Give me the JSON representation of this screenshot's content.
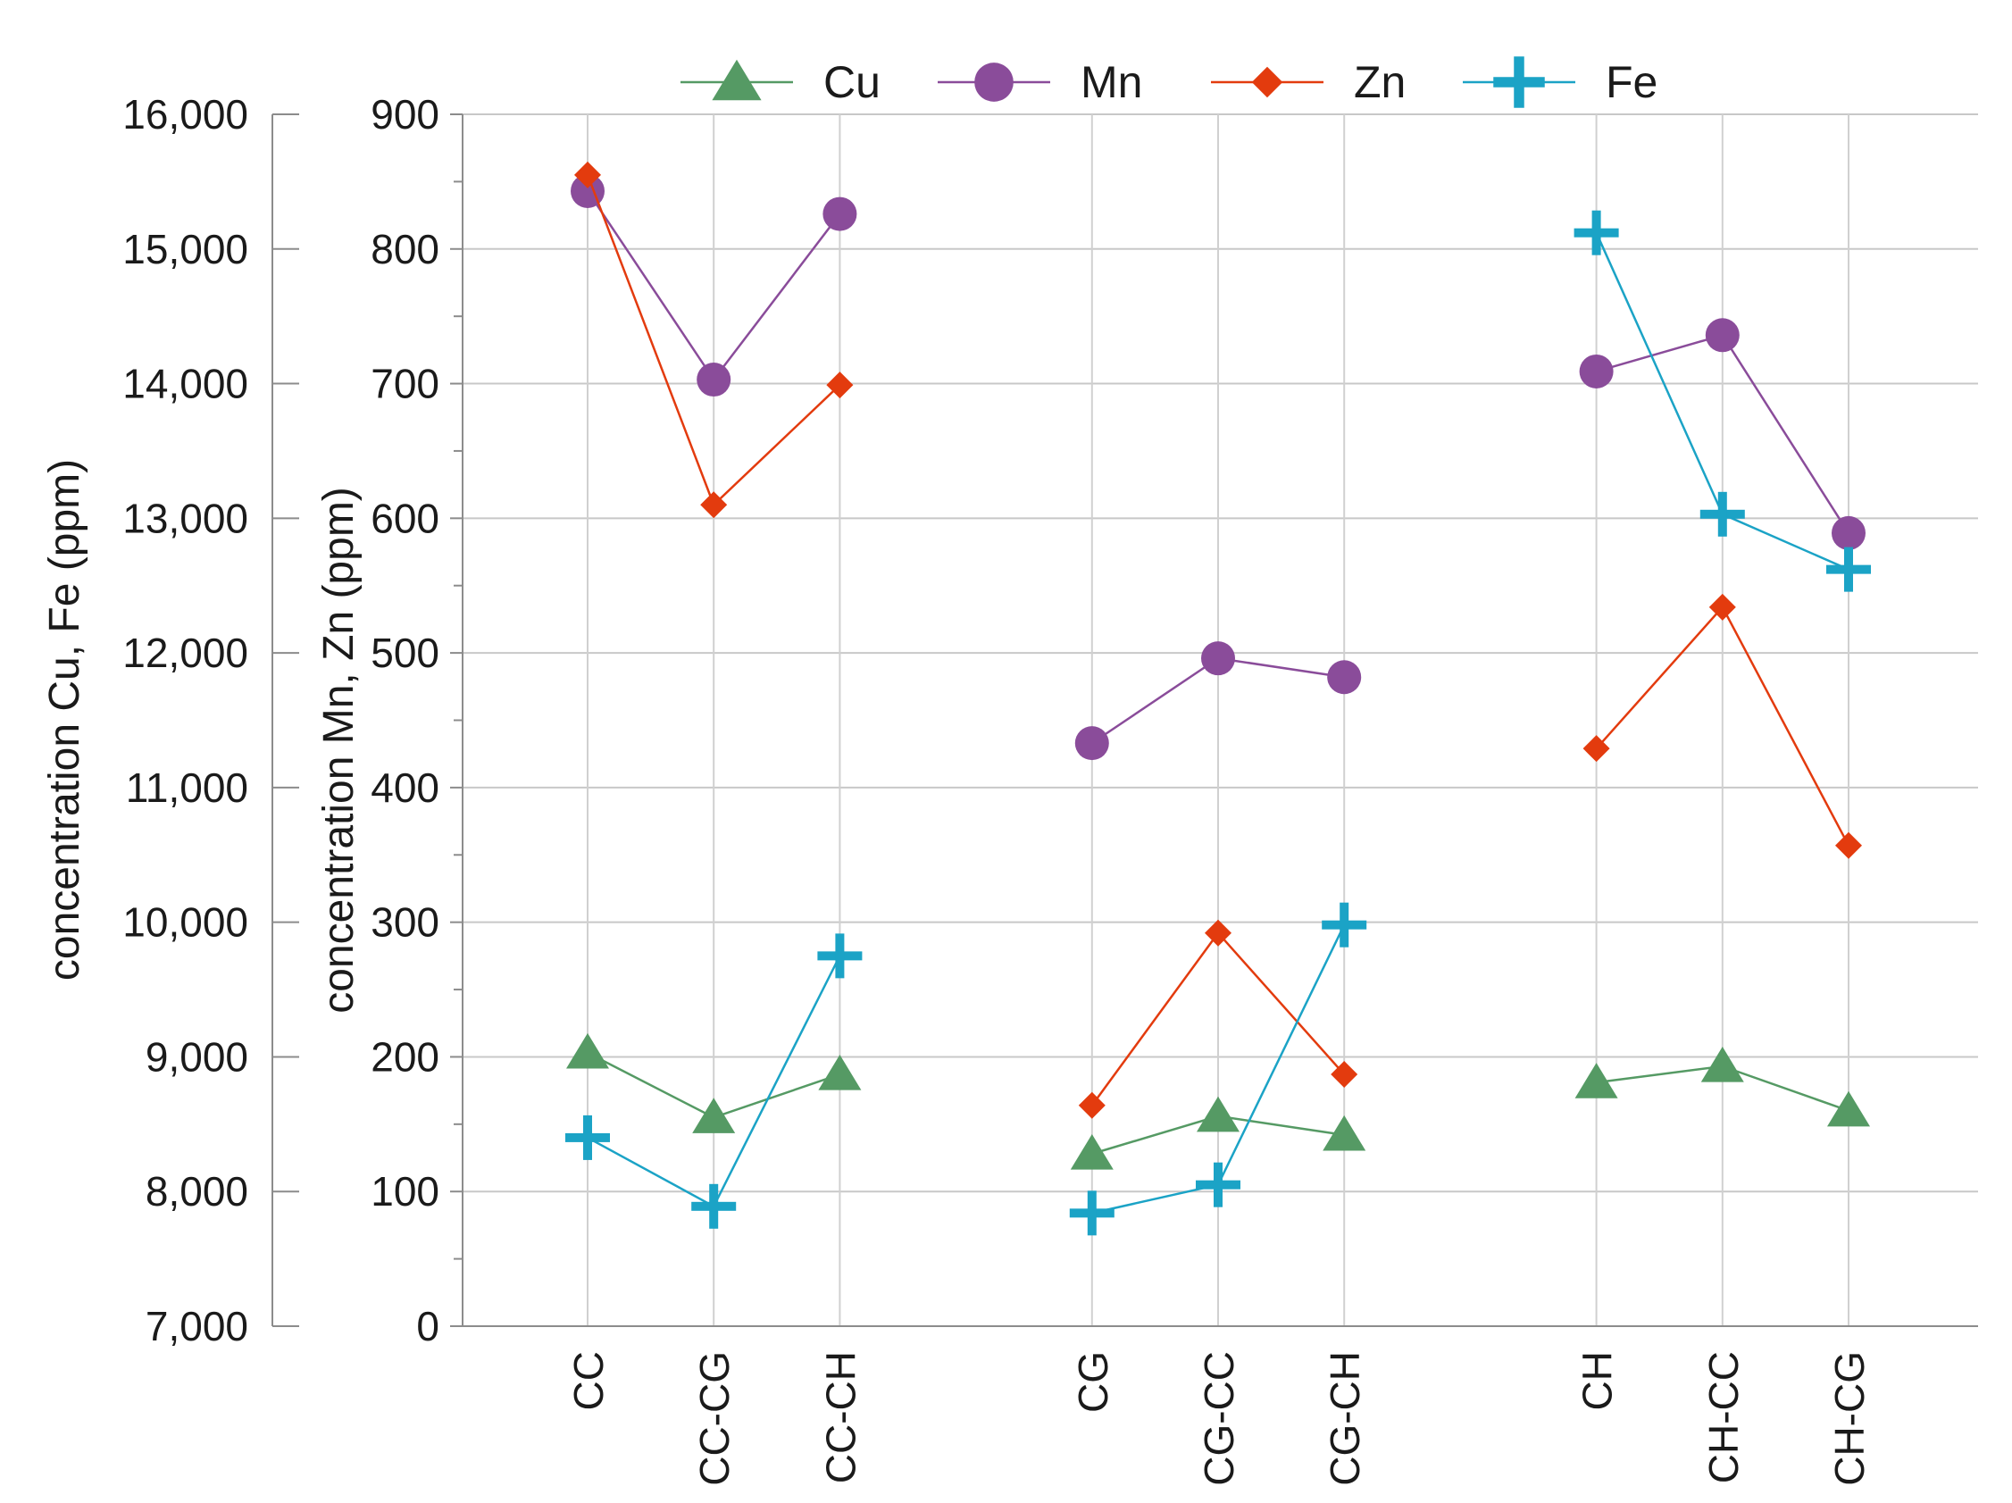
{
  "chart_data": {
    "type": "line",
    "title": "",
    "categories": [
      "CC",
      "CC-CG",
      "CC-CH",
      "",
      "CG",
      "CG-CC",
      "CG-CH",
      "",
      "CH",
      "CH-CC",
      "CH-CG"
    ],
    "left_axis": {
      "label": "concentration Cu, Fe (ppm)",
      "range": [
        7000,
        16000
      ],
      "ticks": [
        7000,
        8000,
        9000,
        10000,
        11000,
        12000,
        13000,
        14000,
        15000,
        16000
      ],
      "tick_labels": [
        "7,000",
        "8,000",
        "9,000",
        "10,000",
        "11,000",
        "12,000",
        "13,000",
        "14,000",
        "15,000",
        "16,000"
      ]
    },
    "right_axis": {
      "label": "concentration Mn, Zn  (ppm)",
      "range": [
        0,
        900
      ],
      "ticks": [
        0,
        100,
        200,
        300,
        400,
        500,
        600,
        700,
        800,
        900
      ],
      "tick_labels": [
        "0",
        "100",
        "200",
        "300",
        "400",
        "500",
        "600",
        "700",
        "800",
        "900"
      ]
    },
    "grid": true,
    "legend_position": "top",
    "series": [
      {
        "name": "Cu",
        "axis": "left",
        "color": "#559A64",
        "marker": "triangle",
        "values": [
          9030,
          8550,
          8870,
          null,
          8280,
          8560,
          8420,
          null,
          8810,
          8930,
          8600
        ]
      },
      {
        "name": "Mn",
        "axis": "right",
        "color": "#8A4C9A",
        "marker": "circle",
        "values": [
          843,
          703,
          826,
          null,
          433,
          496,
          482,
          null,
          709,
          736,
          589
        ]
      },
      {
        "name": "Zn",
        "axis": "right",
        "color": "#E33B0E",
        "marker": "diamond",
        "values": [
          855,
          610,
          699,
          null,
          164,
          292,
          187,
          null,
          429,
          534,
          357
        ]
      },
      {
        "name": "Fe",
        "axis": "left",
        "color": "#1BA3C6",
        "marker": "plus",
        "values": [
          8400,
          7890,
          9750,
          null,
          7840,
          8050,
          9980,
          null,
          15120,
          13030,
          12620
        ]
      }
    ]
  }
}
